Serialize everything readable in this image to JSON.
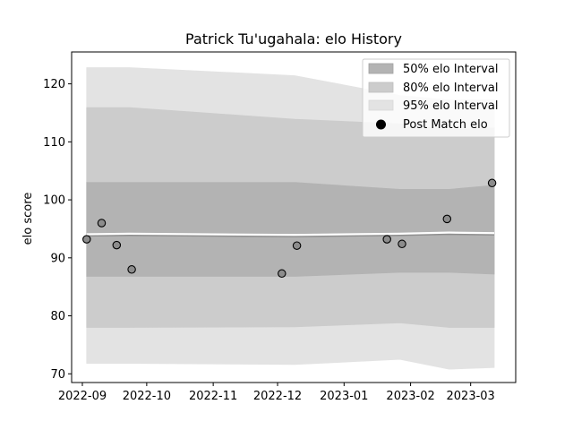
{
  "chart_data": {
    "type": "area",
    "title": "Patrick Tu'ugahala: elo History",
    "xlabel": "",
    "ylabel": "elo score",
    "xlim": [
      "2022-08-27",
      "2023-03-22"
    ],
    "ylim": [
      68.5,
      125.5
    ],
    "yticks": [
      70,
      80,
      90,
      100,
      110,
      120
    ],
    "xticks": [
      "2022-09",
      "2022-10",
      "2022-11",
      "2022-12",
      "2023-01",
      "2023-02",
      "2023-03"
    ],
    "grid": false,
    "legend_position": "top-right",
    "legend": [
      {
        "label": "50% elo Interval",
        "color": "#b3b3b3"
      },
      {
        "label": "80% elo Interval",
        "color": "#cccccc"
      },
      {
        "label": "95% elo Interval",
        "color": "#e3e3e3"
      },
      {
        "label": "Post Match elo",
        "color": "#000000"
      }
    ],
    "band_x": [
      "2022-09-03",
      "2022-09-23",
      "2022-12-09",
      "2023-01-27",
      "2023-02-19",
      "2023-03-12"
    ],
    "bands": {
      "ci95": {
        "upper": [
          122.8,
          122.8,
          121.4,
          118.0,
          117.2,
          117.3
        ],
        "lower": [
          71.8,
          71.8,
          71.6,
          72.5,
          70.8,
          71.1
        ]
      },
      "ci80": {
        "upper": [
          115.9,
          115.9,
          113.9,
          113.1,
          112.1,
          112.4
        ],
        "lower": [
          78.0,
          78.0,
          78.1,
          78.8,
          78.0,
          78.0
        ]
      },
      "ci50": {
        "upper": [
          103.0,
          103.0,
          103.0,
          101.8,
          101.8,
          102.5
        ],
        "lower": [
          86.8,
          86.8,
          86.8,
          87.5,
          87.5,
          87.2
        ]
      }
    },
    "mean_line": {
      "x": [
        "2022-09-03",
        "2022-09-23",
        "2022-12-09",
        "2023-01-27",
        "2023-02-19",
        "2023-03-12"
      ],
      "y": [
        94.0,
        94.1,
        93.9,
        94.1,
        94.3,
        94.2
      ]
    },
    "points": [
      {
        "x": "2022-09-03",
        "y": 93.2
      },
      {
        "x": "2022-09-10",
        "y": 96.0
      },
      {
        "x": "2022-09-17",
        "y": 92.2
      },
      {
        "x": "2022-09-24",
        "y": 88.0
      },
      {
        "x": "2022-12-03",
        "y": 87.3
      },
      {
        "x": "2022-12-10",
        "y": 92.1
      },
      {
        "x": "2023-01-21",
        "y": 93.2
      },
      {
        "x": "2023-01-28",
        "y": 92.4
      },
      {
        "x": "2023-02-18",
        "y": 96.7
      },
      {
        "x": "2023-03-11",
        "y": 102.9
      }
    ]
  }
}
